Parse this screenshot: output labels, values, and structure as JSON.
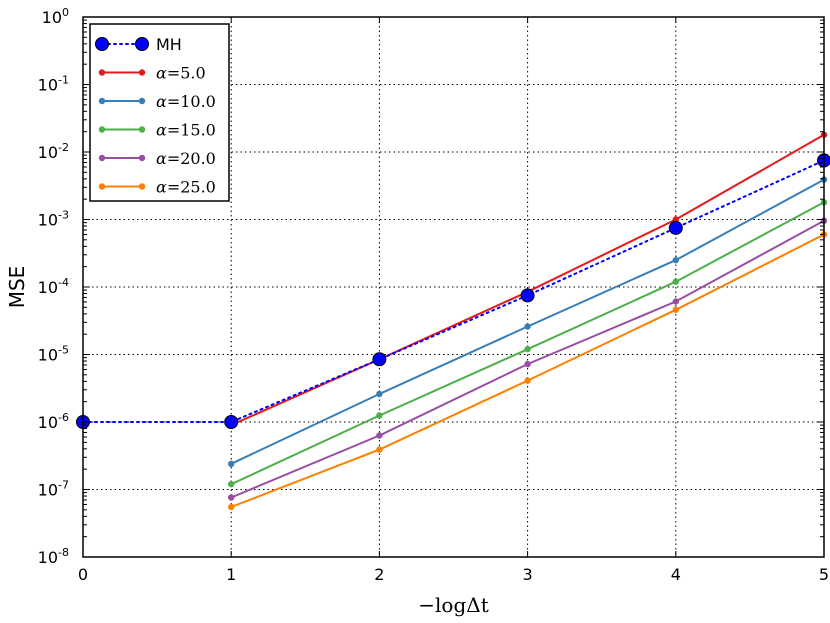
{
  "chart_data": {
    "type": "line",
    "title": "",
    "xlabel": "−logΔt",
    "ylabel": "MSE",
    "xlim": [
      0,
      5
    ],
    "ylim": [
      1e-08,
      1
    ],
    "yscale": "log",
    "grid": true,
    "legend_position": "top-left",
    "xticks": [
      "0",
      "1",
      "2",
      "3",
      "4",
      "5"
    ],
    "yticks": [
      {
        "base": "10",
        "exp": "0"
      },
      {
        "base": "10",
        "exp": "-1"
      },
      {
        "base": "10",
        "exp": "-2"
      },
      {
        "base": "10",
        "exp": "-3"
      },
      {
        "base": "10",
        "exp": "-4"
      },
      {
        "base": "10",
        "exp": "-5"
      },
      {
        "base": "10",
        "exp": "-6"
      },
      {
        "base": "10",
        "exp": "-7"
      },
      {
        "base": "10",
        "exp": "-8"
      }
    ],
    "series": [
      {
        "name": "MH",
        "label_text": "MH",
        "style": "dotted-large-marker",
        "color": "#0000ff",
        "x": [
          0,
          1,
          2,
          3,
          4,
          5
        ],
        "y": [
          1e-06,
          1e-06,
          8.5e-06,
          7.5e-05,
          0.00075,
          0.0075
        ]
      },
      {
        "name": "α=5.0",
        "label_prefix": "α",
        "label_value": "=5.0",
        "style": "solid-small-marker",
        "color": "#e41a1c",
        "x": [
          1,
          2,
          3,
          4,
          5
        ],
        "y": [
          9e-07,
          8.5e-06,
          8.5e-05,
          0.001,
          0.018
        ]
      },
      {
        "name": "α=10.0",
        "label_prefix": "α",
        "label_value": "=10.0",
        "style": "solid-small-marker",
        "color": "#377eb8",
        "x": [
          1,
          2,
          3,
          4,
          5
        ],
        "y": [
          2.4e-07,
          2.6e-06,
          2.6e-05,
          0.00025,
          0.0039
        ]
      },
      {
        "name": "α=15.0",
        "label_prefix": "α",
        "label_value": "=15.0",
        "style": "solid-small-marker",
        "color": "#4daf4a",
        "x": [
          1,
          2,
          3,
          4,
          5
        ],
        "y": [
          1.2e-07,
          1.25e-06,
          1.2e-05,
          0.00012,
          0.0018
        ]
      },
      {
        "name": "α=20.0",
        "label_prefix": "α",
        "label_value": "=20.0",
        "style": "solid-small-marker",
        "color": "#984ea3",
        "x": [
          1,
          2,
          3,
          4,
          5
        ],
        "y": [
          7.6e-08,
          6.3e-07,
          7.2e-06,
          6.1e-05,
          0.00096
        ]
      },
      {
        "name": "α=25.0",
        "label_prefix": "α",
        "label_value": "=25.0",
        "style": "solid-small-marker",
        "color": "#ff7f00",
        "x": [
          1,
          2,
          3,
          4,
          5
        ],
        "y": [
          5.5e-08,
          3.9e-07,
          4.1e-06,
          4.6e-05,
          0.0006
        ]
      }
    ]
  }
}
